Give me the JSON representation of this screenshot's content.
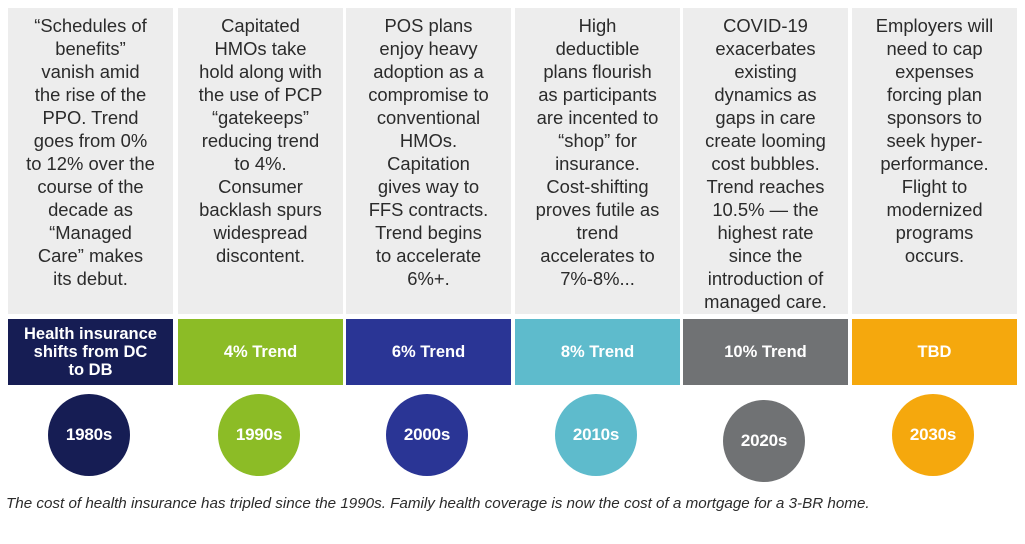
{
  "eras": [
    {
      "description": "“Schedules of\nbenefits”\nvanish amid\nthe rise of the\nPPO. Trend\ngoes from 0%\nto 12% over the\ncourse of the\ndecade as\n“Managed\nCare” makes\nits debut.",
      "trend_label": "Health insurance\nshifts from DC\nto DB",
      "decade": "1980s",
      "bar_color": "#161d54",
      "circle_color": "#161d54"
    },
    {
      "description": "Capitated\nHMOs take\nhold along with\nthe use of PCP\n“gatekeeps”\nreducing trend\nto 4%.\nConsumer\nbacklash spurs\nwidespread\ndiscontent.",
      "trend_label": "4% Trend",
      "decade": "1990s",
      "bar_color": "#8cbc26",
      "circle_color": "#8cbc26"
    },
    {
      "description": "POS plans\nenjoy heavy\nadoption as a\ncompromise to\nconventional\nHMOs.\nCapitation\ngives way to\nFFS contracts.\nTrend begins\nto accelerate\n6%+.",
      "trend_label": "6% Trend",
      "decade": "2000s",
      "bar_color": "#2a3595",
      "circle_color": "#2a3595"
    },
    {
      "description": "High\ndeductible\nplans flourish\nas participants\nare incented to\n“shop” for\ninsurance.\nCost-shifting\nproves futile as\ntrend\naccelerates to\n7%-8%...",
      "trend_label": "8% Trend",
      "decade": "2010s",
      "bar_color": "#5ebbcc",
      "circle_color": "#5ebbcc"
    },
    {
      "description": "COVID-19\nexacerbates\nexisting\ndynamics as\ngaps in care\ncreate looming\ncost bubbles.\nTrend reaches\n10.5% — the\nhighest rate\nsince the\nintroduction of\nmanaged care.",
      "trend_label": "10% Trend",
      "decade": "2020s",
      "bar_color": "#707274",
      "circle_color": "#707274"
    },
    {
      "description": "Employers will\nneed to cap\nexpenses\nforcing plan\nsponsors to\nseek hyper-\nperformance.\nFlight to\nmodernized\nprograms\noccurs.",
      "trend_label": "TBD",
      "decade": "2030s",
      "bar_color": "#f5a80d",
      "circle_color": "#f5a80d"
    }
  ],
  "caption": "The cost of health insurance has tripled since the 1990s. Family health coverage is now the cost of a mortgage for\na 3-BR home."
}
